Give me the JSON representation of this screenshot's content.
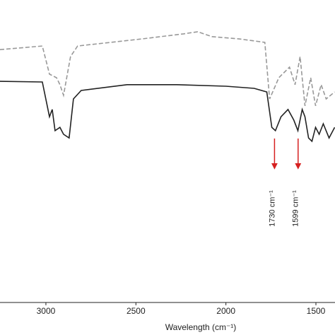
{
  "chart_data": {
    "type": "line",
    "x_label": "Wavelength (cm⁻¹)",
    "xlim": [
      3255,
      1394
    ],
    "ylim": [
      0,
      100
    ],
    "xticks": [
      3000,
      2500,
      2000,
      1500
    ],
    "series": [
      {
        "color": "#999999",
        "dashed": true,
        "x": [
          3255,
          3020,
          2980,
          2941,
          2922,
          2902,
          2863,
          2824,
          2471,
          2235,
          2157,
          2078,
          1922,
          1784,
          1757,
          1706,
          1647,
          1616,
          1588,
          1561,
          1529,
          1502,
          1471,
          1443,
          1396
        ],
        "values": [
          83.6,
          84.8,
          75.5,
          74.3,
          72.0,
          68.5,
          81.3,
          84.8,
          87.1,
          88.8,
          89.5,
          87.9,
          87.1,
          86.0,
          67.3,
          74.3,
          77.8,
          72.0,
          81.3,
          65.0,
          74.3,
          65.0,
          72.0,
          67.3,
          69.6
        ]
      },
      {
        "color": "#222222",
        "dashed": false,
        "x": [
          3255,
          3020,
          2980,
          2965,
          2949,
          2922,
          2902,
          2871,
          2847,
          2804,
          2549,
          2275,
          2000,
          1843,
          1773,
          1745,
          1725,
          1694,
          1655,
          1623,
          1600,
          1576,
          1561,
          1541,
          1522,
          1502,
          1482,
          1459,
          1427,
          1396
        ],
        "values": [
          73.1,
          72.9,
          61.4,
          63.8,
          56.8,
          57.9,
          55.6,
          54.4,
          67.3,
          70.1,
          72.0,
          72.0,
          71.5,
          70.8,
          69.6,
          57.9,
          56.8,
          61.4,
          63.8,
          60.3,
          56.8,
          63.8,
          61.4,
          54.4,
          53.3,
          57.9,
          55.6,
          59.1,
          54.4,
          57.9
        ]
      }
    ],
    "annotations": [
      {
        "text": "1730 cm⁻¹",
        "x": 1730,
        "color": "#d62020"
      },
      {
        "text": "1599 cm⁻¹",
        "x": 1599,
        "color": "#d62020"
      }
    ]
  }
}
